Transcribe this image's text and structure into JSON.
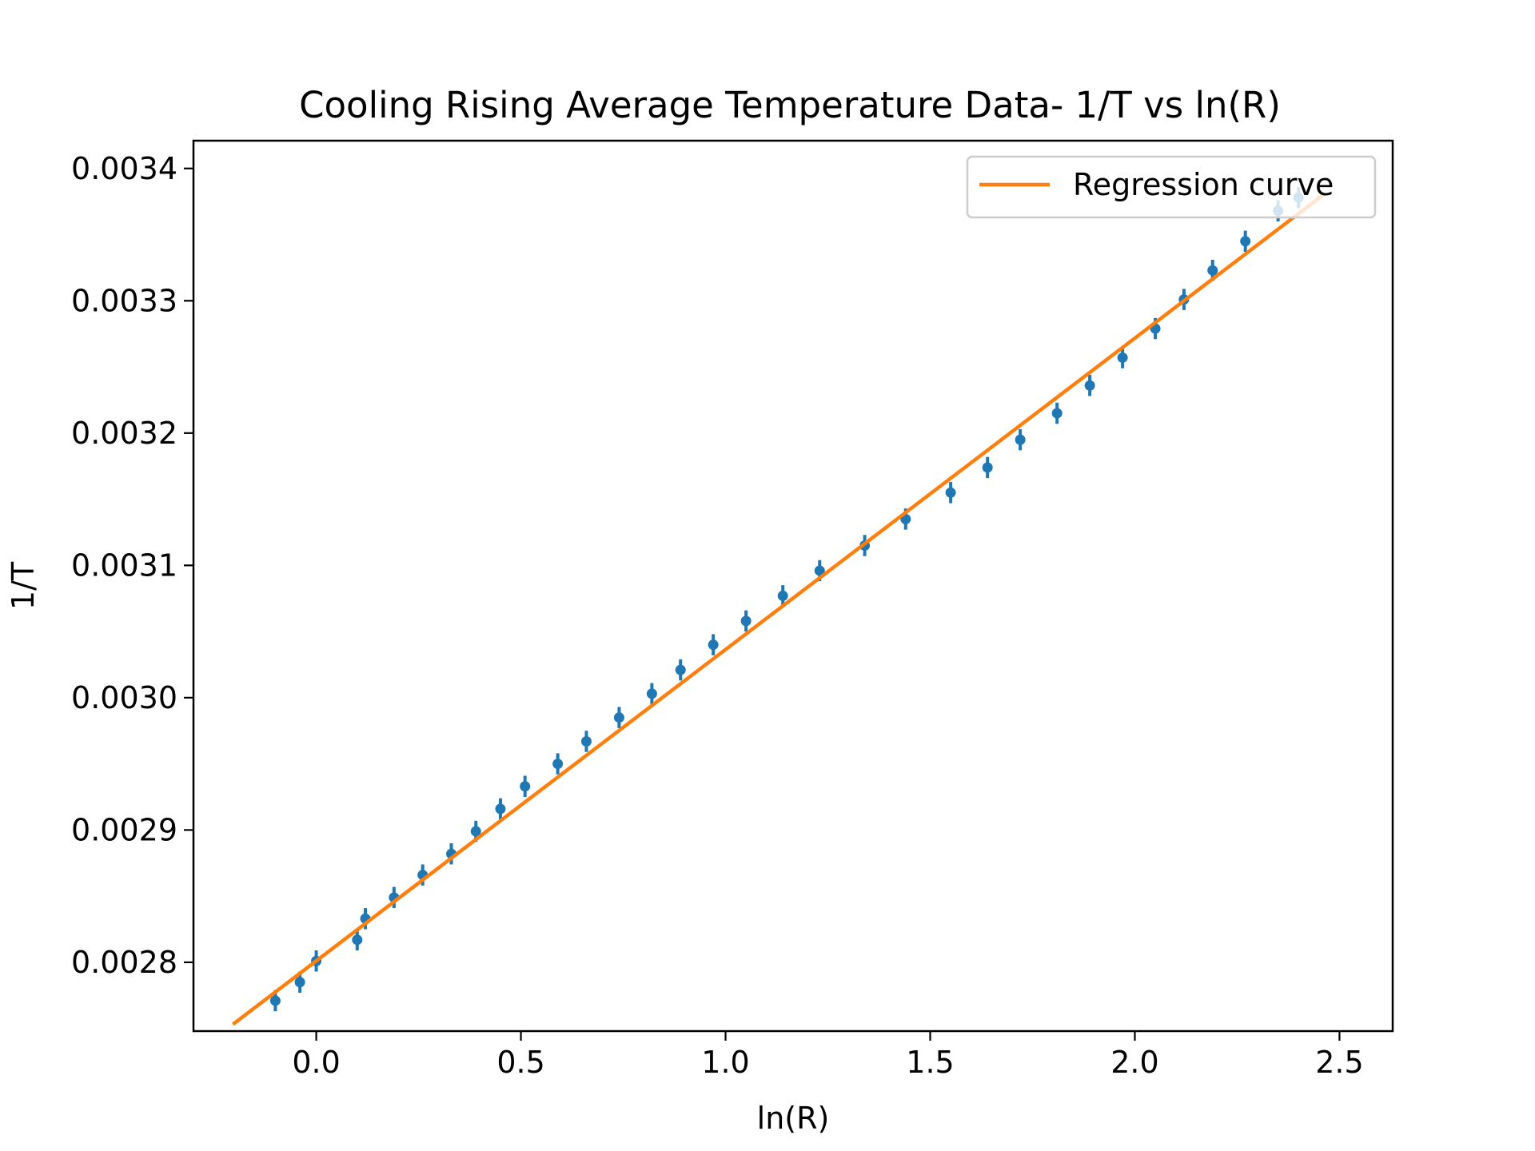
{
  "chart_data": {
    "type": "scatter",
    "title": "Cooling Rising Average Temperature Data-  1/T vs ln(R)",
    "xlabel": "ln(R)",
    "ylabel": "1/T",
    "xlim": [
      -0.3,
      2.63
    ],
    "ylim": [
      0.002748,
      0.003421
    ],
    "xticks": [
      0.0,
      0.5,
      1.0,
      1.5,
      2.0,
      2.5
    ],
    "xtick_labels": [
      "0.0",
      "0.5",
      "1.0",
      "1.5",
      "2.0",
      "2.5"
    ],
    "yticks": [
      0.0028,
      0.0029,
      0.003,
      0.0031,
      0.0032,
      0.0033,
      0.0034
    ],
    "ytick_labels": [
      "0.0028",
      "0.0029",
      "0.0030",
      "0.0031",
      "0.0032",
      "0.0033",
      "0.0034"
    ],
    "grid": false,
    "legend": {
      "placement": "upper right",
      "entries": [
        "Regression curve"
      ]
    },
    "colors": {
      "data": "#1f77b4",
      "regression": "#ff7f0e"
    },
    "series": [
      {
        "type": "errorbar",
        "x": [
          -0.1,
          -0.04,
          0.0,
          0.1,
          0.12,
          0.19,
          0.26,
          0.33,
          0.39,
          0.45,
          0.51,
          0.59,
          0.66,
          0.74,
          0.82,
          0.89,
          0.97,
          1.05,
          1.14,
          1.23,
          1.34,
          1.44,
          1.55,
          1.64,
          1.72,
          1.81,
          1.89,
          1.97,
          2.05,
          2.12,
          2.19,
          2.27,
          2.35,
          2.4
        ],
        "y": [
          0.002771,
          0.002785,
          0.002801,
          0.002817,
          0.002833,
          0.002849,
          0.002866,
          0.002882,
          0.002899,
          0.002916,
          0.002933,
          0.00295,
          0.002967,
          0.002985,
          0.003003,
          0.003021,
          0.00304,
          0.003058,
          0.003077,
          0.003096,
          0.003115,
          0.003135,
          0.003155,
          0.003174,
          0.003195,
          0.003215,
          0.003236,
          0.003257,
          0.003279,
          0.003301,
          0.003323,
          0.003345,
          0.003368,
          0.003378
        ],
        "yerr": 8e-06
      },
      {
        "type": "line",
        "name": "Regression curve",
        "x": [
          -0.2,
          2.46
        ],
        "y": [
          0.002754,
          0.00338
        ]
      }
    ]
  }
}
